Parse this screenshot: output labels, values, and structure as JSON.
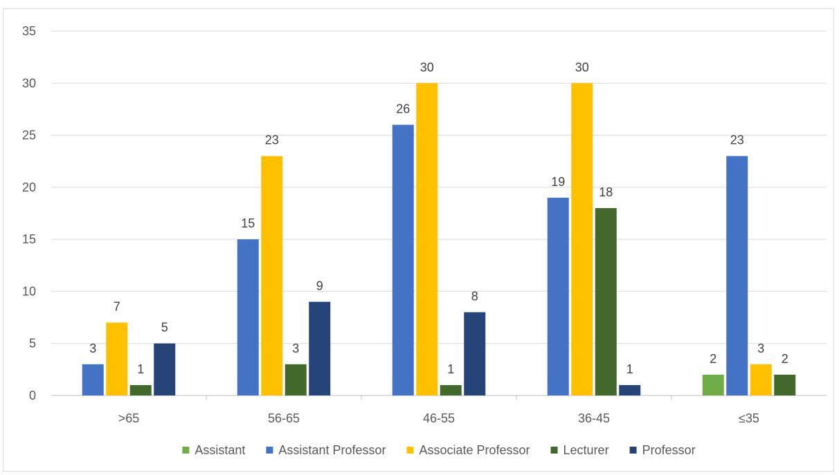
{
  "chart_data": {
    "type": "bar",
    "title": "",
    "xlabel": "",
    "ylabel": "",
    "categories": [
      ">65",
      "56-65",
      "46-55",
      "36-45",
      "≤35"
    ],
    "ylim": [
      0,
      35
    ],
    "yticks": [
      0,
      5,
      10,
      15,
      20,
      25,
      30,
      35
    ],
    "grid": true,
    "legend_position": "bottom",
    "series": [
      {
        "name": "Assistant",
        "color": "#70ad47",
        "values": [
          null,
          null,
          null,
          null,
          2
        ]
      },
      {
        "name": "Assistant Professor",
        "color": "#4472c4",
        "values": [
          3,
          15,
          26,
          19,
          23
        ]
      },
      {
        "name": "Associate Professor",
        "color": "#ffc000",
        "values": [
          7,
          23,
          30,
          30,
          3
        ]
      },
      {
        "name": "Lecturer",
        "color": "#43682b",
        "values": [
          1,
          3,
          1,
          18,
          2
        ]
      },
      {
        "name": "Professor",
        "color": "#264478",
        "values": [
          5,
          9,
          8,
          1,
          null
        ]
      }
    ]
  }
}
